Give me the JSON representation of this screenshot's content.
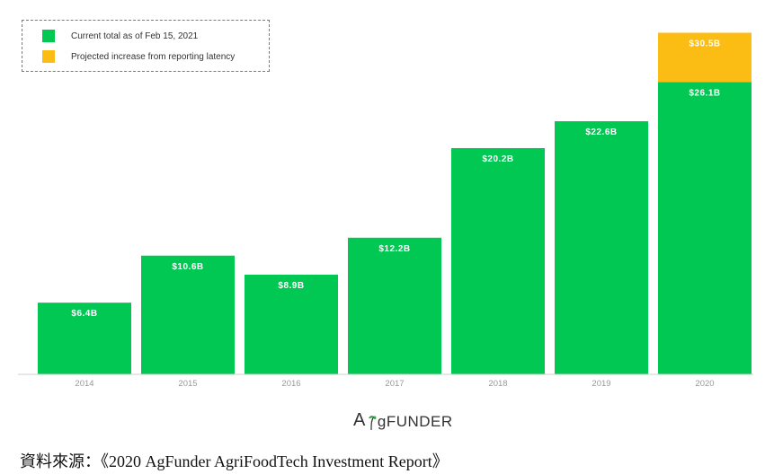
{
  "chart_data": {
    "type": "bar",
    "stacked": true,
    "categories": [
      "2014",
      "2015",
      "2016",
      "2017",
      "2018",
      "2019",
      "2020"
    ],
    "series": [
      {
        "name": "Current total as of Feb 15, 2021",
        "color": "#00c853",
        "values": [
          6.4,
          10.6,
          8.9,
          12.2,
          20.2,
          22.6,
          26.1
        ],
        "labels": [
          "$6.4B",
          "$10.6B",
          "$8.9B",
          "$12.2B",
          "$20.2B",
          "$22.6B",
          "$26.1B"
        ]
      },
      {
        "name": "Projected increase from reporting latency",
        "color": "#fbbc13",
        "values": [
          0,
          0,
          0,
          0,
          0,
          0,
          4.4
        ],
        "labels": [
          "",
          "",
          "",
          "",
          "",
          "",
          "$30.5B"
        ]
      }
    ],
    "title": "",
    "xlabel": "",
    "ylabel": "",
    "ylim": [
      0,
      31.5
    ],
    "grid": false,
    "legend_position": "top-left"
  },
  "logo": {
    "a": "A",
    "g": "g",
    "rest": "FUNDER"
  },
  "source": "資料來源：《2020 AgFunder AgriFoodTech Investment Report》"
}
